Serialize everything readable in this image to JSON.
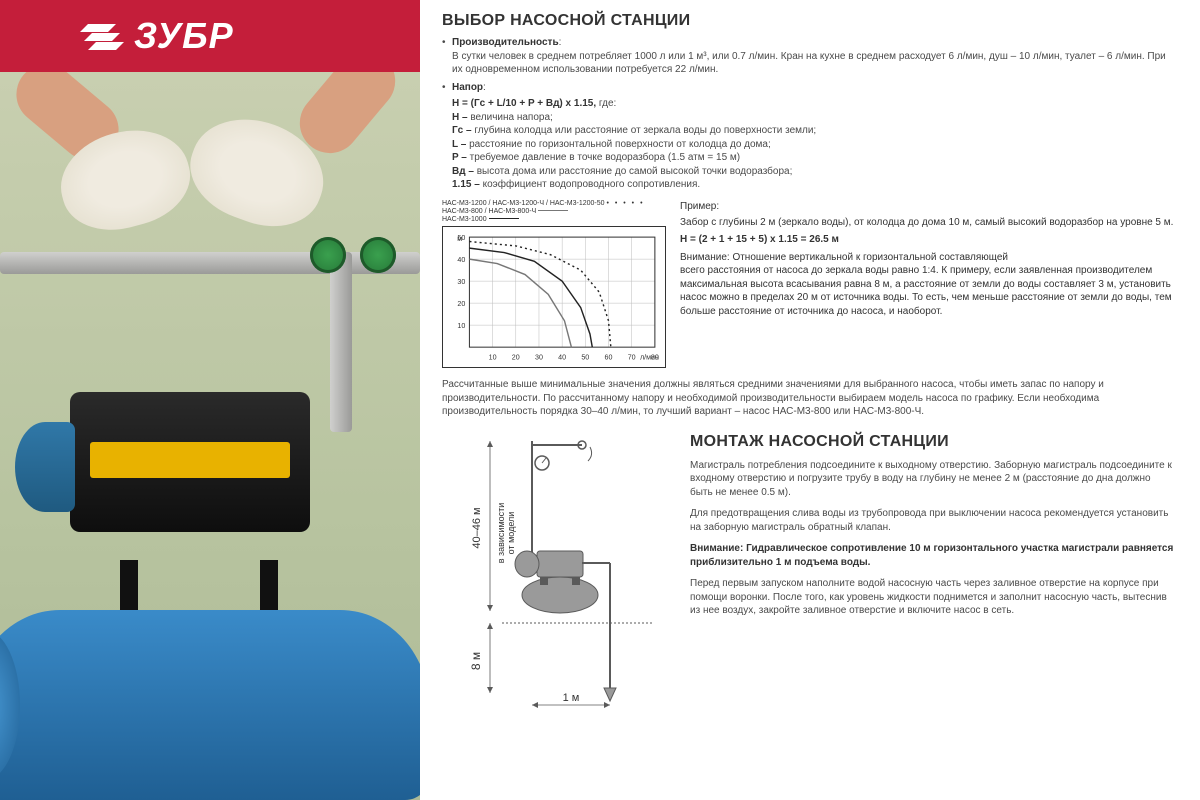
{
  "brand": "ЗУБР",
  "colors": {
    "brand_red": "#c41e3a",
    "text": "#4a4a4a",
    "heading": "#333333",
    "pump_blue": "#2c72a8",
    "motor_black": "#1a1a1a",
    "motor_stripe": "#e8b200",
    "valve_green": "#2f9544",
    "chart_border": "#333333",
    "grid": "#bdbdbd",
    "curve1": "#222222",
    "curve2": "#777777"
  },
  "section1": {
    "title": "ВЫБОР НАСОСНОЙ СТАНЦИИ",
    "perf_label": "Производительность",
    "perf_text": "В сутки человек в среднем потребляет 1000 л или 1 м³, или 0.7 л/мин. Кран на кухне в среднем расходует 6 л/мин, душ – 10 л/мин, туалет – 6 л/мин. При их одновременном использовании потребуется 22 л/мин.",
    "head_label": "Напор",
    "head_formula": "H = (Гс + L/10 + P + Вд) х 1.15,",
    "head_where": "где:",
    "defs": [
      {
        "k": "H –",
        "v": "величина напора;"
      },
      {
        "k": "Гс –",
        "v": "глубина колодца или расстояние от зеркала воды до поверхности земли;"
      },
      {
        "k": "L –",
        "v": "расстояние по горизонтальной поверхности от колодца до дома;"
      },
      {
        "k": "P –",
        "v": "требуемое давление в точке водоразбора (1.5 атм = 15 м)"
      },
      {
        "k": "Вд –",
        "v": "высота дома или расстояние до самой высокой точки водоразбора;"
      },
      {
        "k": "1.15 –",
        "v": "коэффициент водопроводного сопротивления."
      }
    ]
  },
  "chart": {
    "legend_line1": "НАС-М3-1200 / НАС-М3-1200-Ч / НАС-М3-1200-50",
    "legend_line2": "НАС-М3-800 / НАС-М3-800-Ч",
    "legend_line3": "НАС-М3-1000",
    "x_ticks": [
      10,
      20,
      30,
      40,
      50,
      60,
      70,
      80
    ],
    "x_label": "л/мин",
    "y_ticks": [
      10,
      20,
      30,
      40,
      50
    ],
    "y_unit": "м",
    "xlim": [
      0,
      80
    ],
    "ylim": [
      0,
      50
    ],
    "series": [
      {
        "name": "НАС-М3-1200",
        "style": "dotted",
        "color": "#222222",
        "points": [
          [
            0,
            48
          ],
          [
            20,
            46
          ],
          [
            35,
            42
          ],
          [
            48,
            35
          ],
          [
            56,
            25
          ],
          [
            60,
            12
          ],
          [
            61,
            0
          ]
        ]
      },
      {
        "name": "НАС-М3-1000",
        "style": "solid",
        "color": "#222222",
        "points": [
          [
            0,
            45
          ],
          [
            15,
            43
          ],
          [
            28,
            39
          ],
          [
            40,
            30
          ],
          [
            48,
            18
          ],
          [
            52,
            6
          ],
          [
            53,
            0
          ]
        ]
      },
      {
        "name": "НАС-М3-800",
        "style": "solid",
        "color": "#777777",
        "points": [
          [
            0,
            40
          ],
          [
            12,
            38
          ],
          [
            24,
            33
          ],
          [
            34,
            24
          ],
          [
            41,
            12
          ],
          [
            44,
            0
          ]
        ]
      }
    ]
  },
  "example": {
    "label": "Пример:",
    "text": "Забор с  глубины 2 м (зеркало воды), от колодца до дома 10 м, самый высокий водоразбор на уровне 5 м.",
    "equation": "H = (2 + 1 + 15 + 5) х 1.15 = 26.5 м",
    "warn_label": "Внимание: Отношение вертикальной к горизонтальной составляющей",
    "warn_text": "всего расстояния от насоса до зеркала воды равно 1:4. К примеру, если заявленная производителем максимальная высота всасывания равна 8 м, а расстояние от земли до воды составляет 3 м, установить насос можно в пределах 20 м от источника воды. То есть, чем меньше расстояние от земли до воды, тем больше расстояние от источника до насоса, и наоборот."
  },
  "summary": "Рассчитанные выше минимальные значения должны являться средними значениями для выбранного насоса, чтобы иметь запас по напору и производительности. По рассчитанному напору и необходимой производительности выбираем модель насоса по графику. Если необходима производительность порядка 30–40 л/мин, то лучший вариант – насос НАС-М3-800 или НАС-М3-800-Ч.",
  "section2": {
    "title": "МОНТАЖ НАСОСНОЙ СТАНЦИИ",
    "p1": "Магистраль потребления подсоедините к выходному отверстию. Заборную магистраль подсоедините к входному отверстию и погрузите трубу в воду на глубину не менее 2 м (расстояние до дна должно быть не менее 0.5 м).",
    "p2": "Для предотвращения слива воды из трубопровода при выключении насоса рекомендуется установить на заборную магистраль обратный клапан.",
    "warn_label": "Внимание:",
    "warn": "Гидравлическое сопротивление 10 м горизонтального участка магистрали равняется приблизительно 1 м подъема воды.",
    "p3": "Перед первым запуском наполните водой насосную часть через заливное отверстие на корпусе при помощи воронки. После того, как уровень жидкости поднимется и заполнит насосную часть, вытеснив из нее воздух, закройте заливное отверстие и включите насос в сеть."
  },
  "diagram": {
    "height_label": "40–46 м",
    "height_note1": "в зависимости",
    "height_note2": "от модели",
    "depth_label": "8 м",
    "horiz_label": "1 м"
  }
}
